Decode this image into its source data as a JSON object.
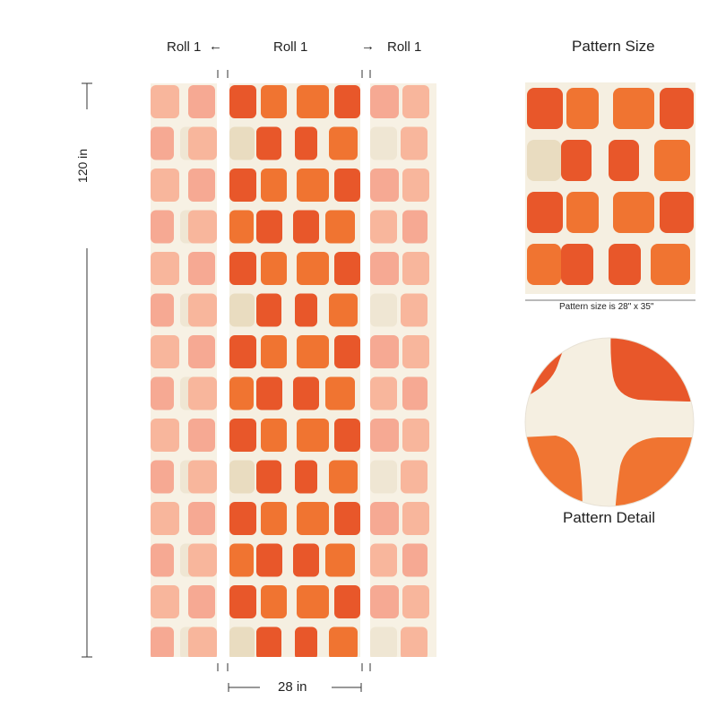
{
  "roll_labels": {
    "left": "Roll 1",
    "center": "Roll 1",
    "right": "Roll 1"
  },
  "arrows": {
    "left": "←",
    "right": "→"
  },
  "height_label": "120 in",
  "width_label": "28 in",
  "pattern_size": {
    "title": "Pattern Size",
    "caption": "Pattern size is 28\" x 35\""
  },
  "pattern_detail": {
    "title": "Pattern Detail"
  },
  "colors": {
    "background": "#f5efe1",
    "orange_dark": "#e8572a",
    "orange": "#f07431",
    "beige": "#e9dcc0",
    "peach": "#f6a993",
    "peach_light": "#f8b69c",
    "cream_tile": "#efe6d3"
  }
}
